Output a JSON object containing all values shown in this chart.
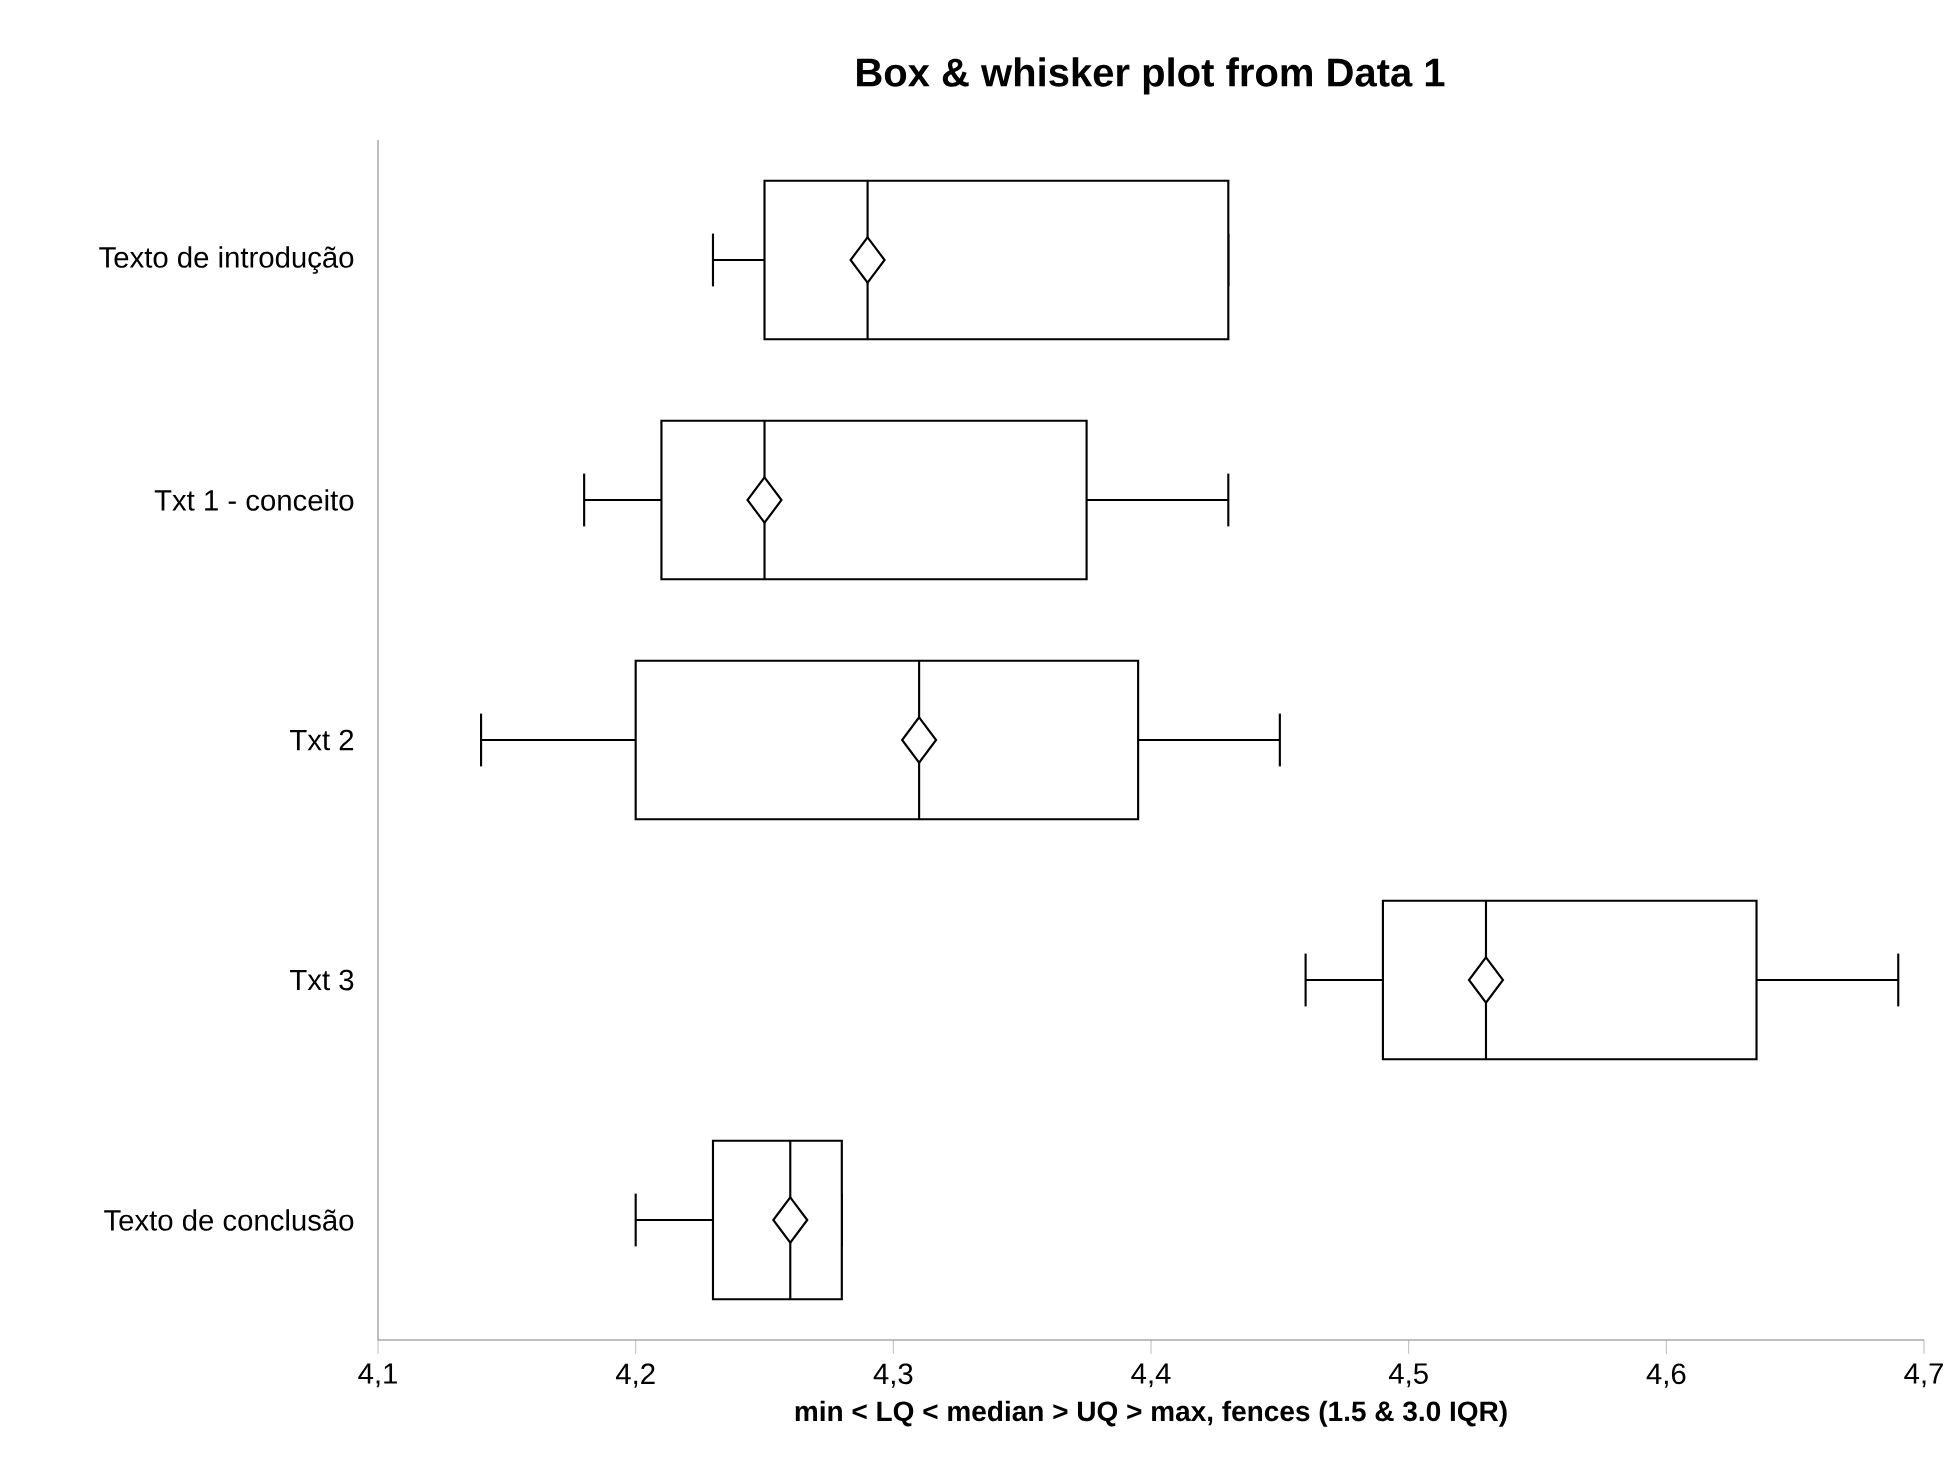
{
  "chart_data": {
    "type": "box",
    "title": "Box & whisker plot from Data 1",
    "xlabel": "min < LQ < median > UQ > max, fences (1.5 & 3.0 IQR)",
    "orientation": "horizontal",
    "marker": "diamond",
    "categories": [
      "Texto de introdução",
      "Txt 1 - conceito",
      "Txt 2",
      "Txt 3",
      "Texto de conclusão"
    ],
    "boxes": [
      {
        "low": 4.23,
        "q1": 4.25,
        "median": 4.29,
        "q3": 4.43,
        "high": 4.43,
        "mean": 4.29
      },
      {
        "low": 4.18,
        "q1": 4.21,
        "median": 4.25,
        "q3": 4.375,
        "high": 4.43,
        "mean": 4.25
      },
      {
        "low": 4.14,
        "q1": 4.2,
        "median": 4.31,
        "q3": 4.395,
        "high": 4.45,
        "mean": 4.31
      },
      {
        "low": 4.46,
        "q1": 4.49,
        "median": 4.53,
        "q3": 4.635,
        "high": 4.69,
        "mean": 4.53
      },
      {
        "low": 4.2,
        "q1": 4.23,
        "median": 4.26,
        "q3": 4.28,
        "high": 4.28,
        "mean": 4.26
      }
    ],
    "xlim": [
      4.1,
      4.7
    ],
    "xticks": [
      {
        "value": 4.1,
        "label": "4,1"
      },
      {
        "value": 4.2,
        "label": "4,2"
      },
      {
        "value": 4.3,
        "label": "4,3"
      },
      {
        "value": 4.4,
        "label": "4,4"
      },
      {
        "value": 4.5,
        "label": "4,5"
      },
      {
        "value": 4.6,
        "label": "4,6"
      },
      {
        "value": 4.7,
        "label": "4,7"
      }
    ]
  }
}
